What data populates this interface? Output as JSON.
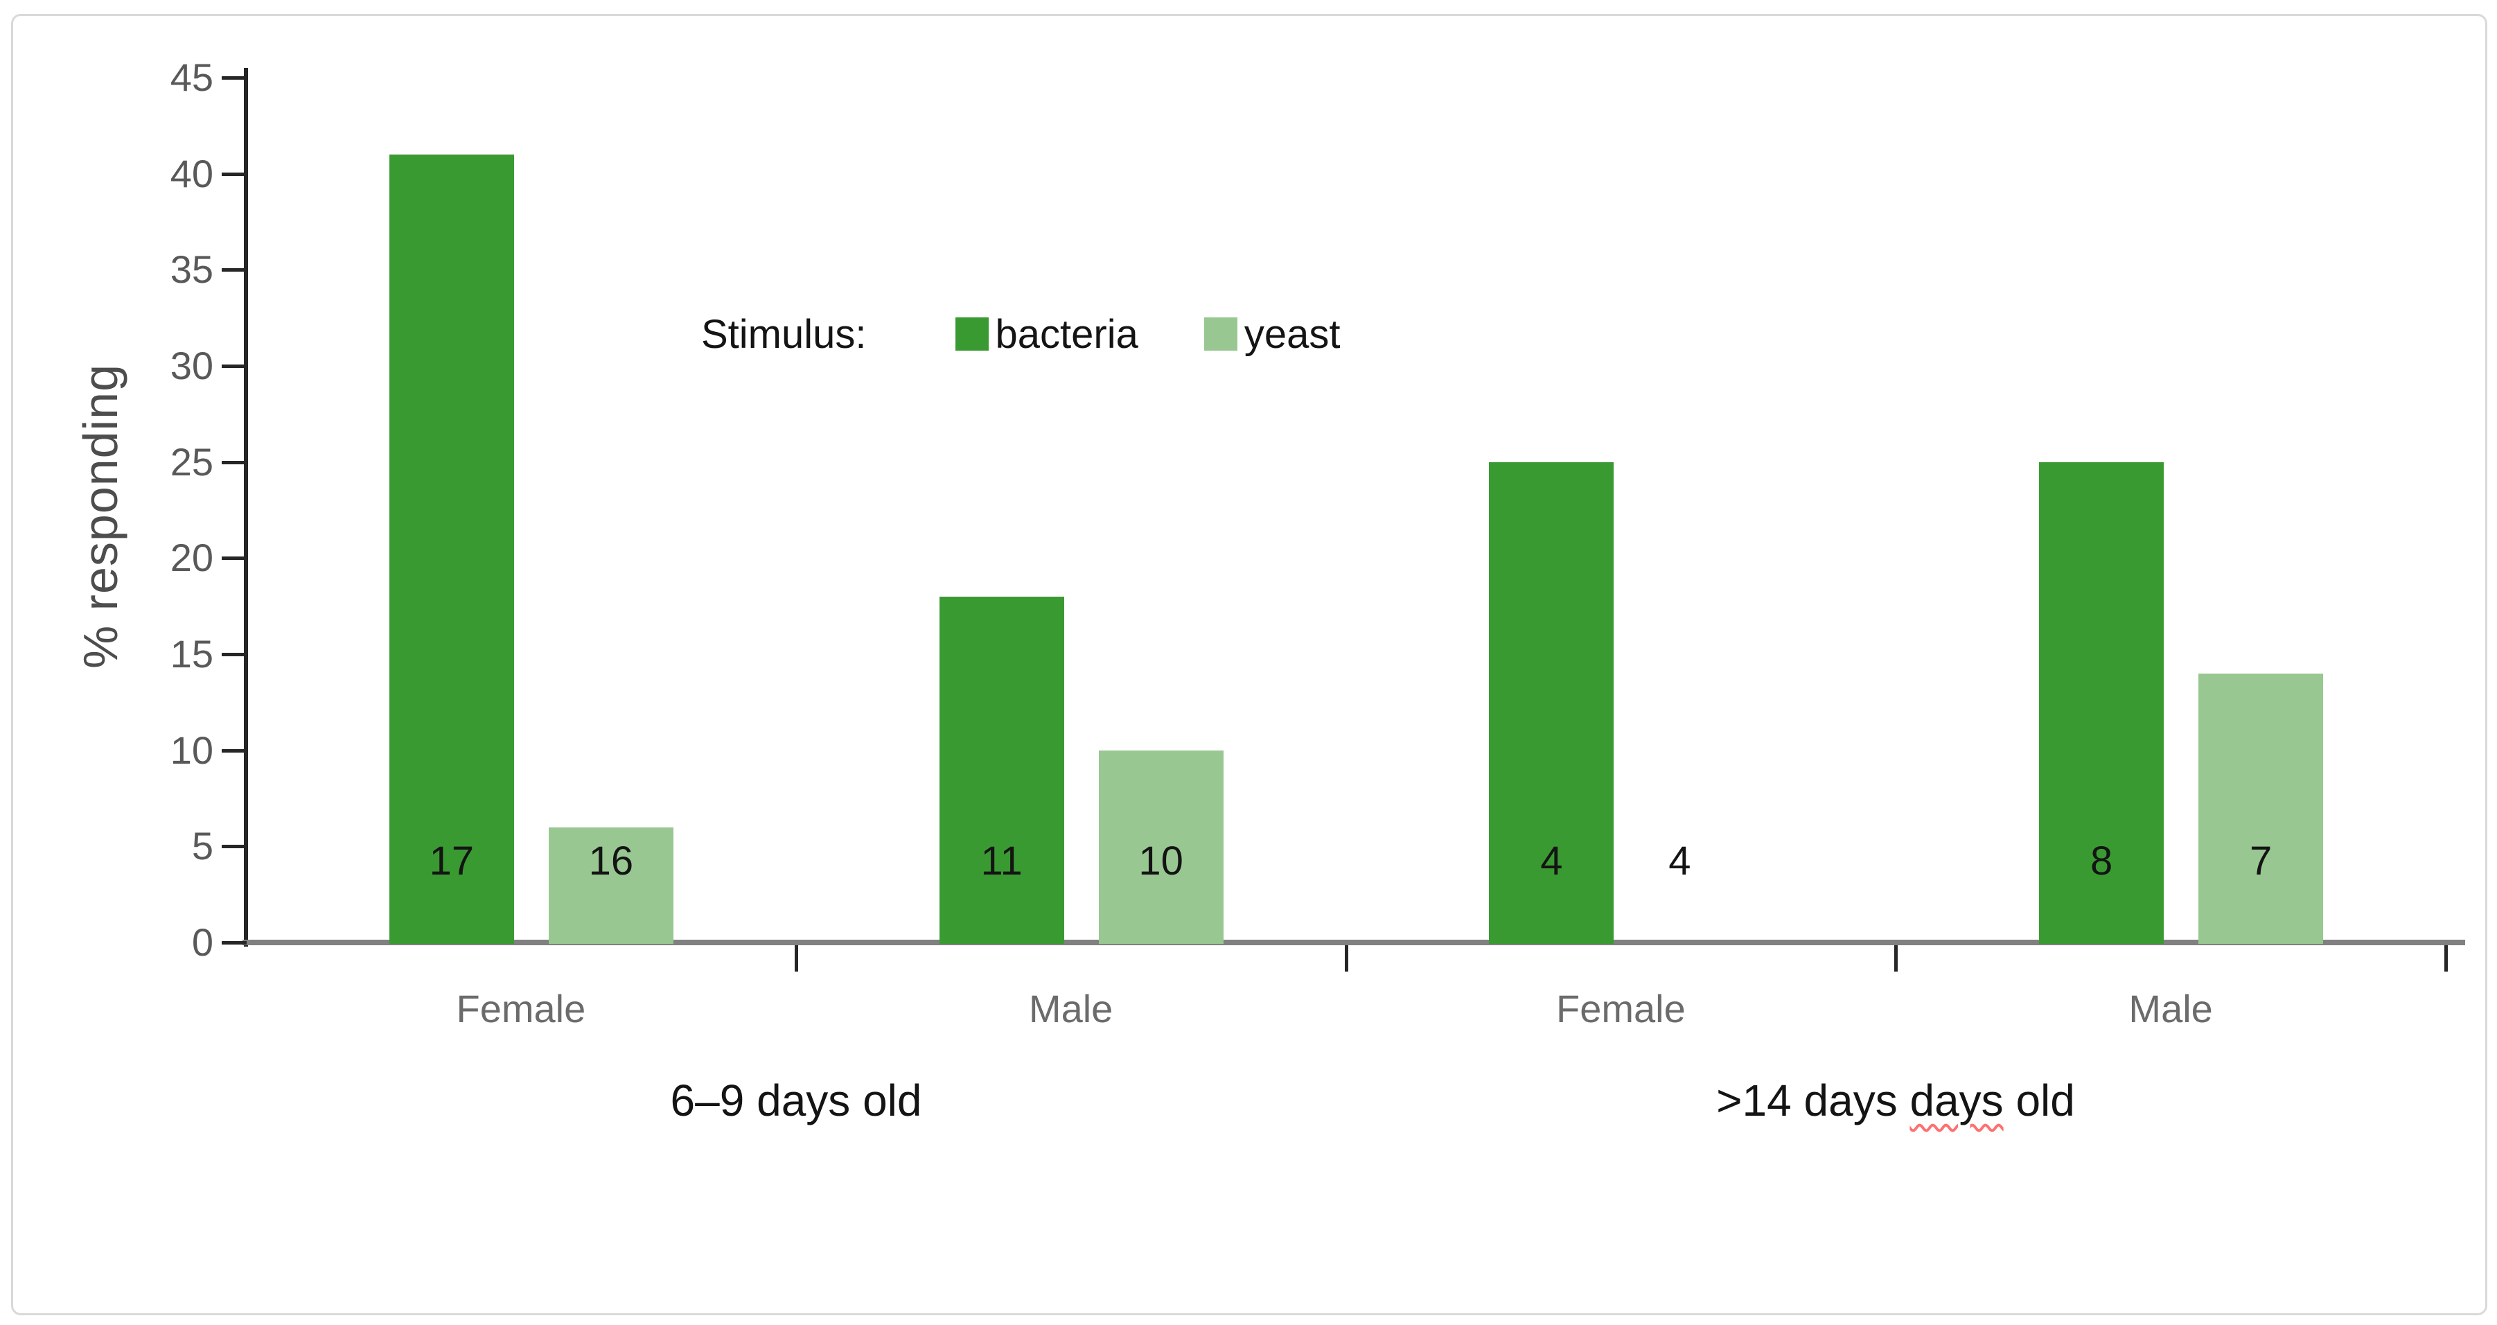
{
  "figure": {
    "background": "#ffffff",
    "border_color": "#d9d9d9"
  },
  "chart_data": {
    "type": "bar",
    "title": "",
    "ylabel": "% responding",
    "xlabel": "",
    "ylim": [
      0,
      45
    ],
    "ytick_step": 5,
    "y_tick_labels": [
      "45",
      "40",
      "35",
      "30",
      "25",
      "20",
      "15",
      "10",
      "5",
      "0"
    ],
    "grid": false,
    "legend_title": "Stimulus:",
    "legend_position": "upper-center",
    "categories": [
      "Female",
      "Male",
      "Female",
      "Male"
    ],
    "group_labels": [
      "6–9 days old",
      ">14 days days old"
    ],
    "group2_parts": [
      ">14 days ",
      "days",
      " old"
    ],
    "series": [
      {
        "name": "bacteria",
        "color": "#3a9a32",
        "values": [
          41,
          18,
          25,
          25
        ],
        "bar_labels": [
          "17",
          "11",
          "4",
          "8"
        ]
      },
      {
        "name": "yeast",
        "color": "#98c791",
        "values": [
          6,
          10,
          0,
          14
        ],
        "bar_labels": [
          "16",
          "10",
          "4",
          "7"
        ]
      }
    ]
  }
}
